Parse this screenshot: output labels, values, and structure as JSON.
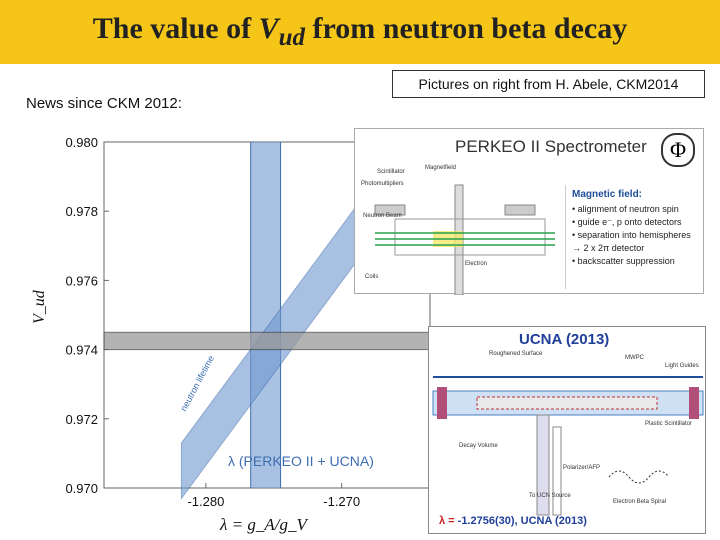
{
  "title": {
    "prefix": "The value of ",
    "symbol": "V",
    "subscript": "ud",
    "suffix": " from neutron beta decay"
  },
  "news_text": "News since CKM 2012:",
  "credit_text": "Pictures on right from H. Abele, CKM2014",
  "chart_data": {
    "type": "band-plot",
    "x_range": [
      -1.2875,
      -1.2635
    ],
    "y_range": [
      0.97,
      0.98
    ],
    "x_ticks": [
      "-1.280",
      "-1.270"
    ],
    "x_tick_values": [
      -1.28,
      -1.27
    ],
    "y_ticks": [
      "0.980",
      "0.978",
      "0.976",
      "0.974",
      "0.972",
      "0.970"
    ],
    "y_tick_values": [
      0.98,
      0.978,
      0.976,
      0.974,
      0.972,
      0.97
    ],
    "xlabel": "λ = g_A/g_V",
    "ylabel": "V_ud",
    "vertical_band": {
      "center": -1.2756,
      "half_width": 0.0011,
      "color": "#6f98d0"
    },
    "horizontal_band": {
      "center": 0.97425,
      "half_width": 0.00025,
      "color": "#9a9a9a"
    },
    "diagonal_band": {
      "points": [
        [
          -1.2818,
          0.9705
        ],
        [
          -1.2658,
          0.979
        ]
      ],
      "half_width_y": 0.0008,
      "color": "#6f98d0",
      "label": "neutron lifetime"
    },
    "band_label": "λ (PERKEO II + UCNA)",
    "grid": false
  },
  "perkeo": {
    "title": "PERKEO II Spectrometer",
    "logo": "Φ",
    "labels": [
      "Scintillator",
      "Magnetfield",
      "Photomultipliers",
      "Neutron Beam",
      "Electron",
      "Coils"
    ],
    "magnetic_heading": "Magnetic field:",
    "magnetic_items": [
      "• alignment of neutron spin",
      "• guide e⁻, p onto detectors",
      "• separation into hemispheres",
      "   → 2 x 2π detector",
      "• backscatter suppression"
    ]
  },
  "ucna": {
    "title": "UCNA (2013)",
    "labels": [
      "Roughened Surface",
      "MWPC",
      "Light Guides",
      "Plastic Scintillator",
      "Decay Volume",
      "Polarizer/AFP",
      "To UCN Source",
      "Electron Beta Spiral"
    ],
    "result_prefix": "λ = ",
    "result_value": "-1.2756(30), UCNA (2013)"
  }
}
